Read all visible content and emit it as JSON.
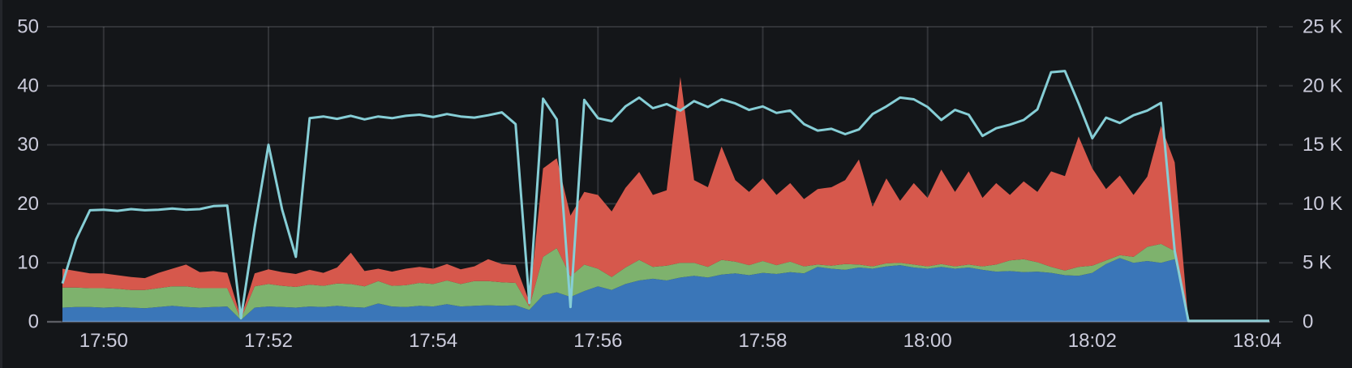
{
  "panel": {
    "colors": {
      "background": "#141619",
      "text": "#ccccdc",
      "grid": "rgba(204,204,220,0.16)",
      "axis_line": "rgba(204,204,220,0.28)"
    }
  },
  "chart_data": {
    "type": "area",
    "stacked": true,
    "title": "",
    "grid": true,
    "legend": "none",
    "x_axis": {
      "start_time": "17:49:30",
      "end_time": "18:04:00",
      "sample_step_seconds": 10,
      "tick_labels": [
        "17:50",
        "17:52",
        "17:54",
        "17:56",
        "17:58",
        "18:00",
        "18:02",
        "18:04"
      ],
      "tick_offsets_seconds": [
        30,
        150,
        270,
        390,
        510,
        630,
        750,
        870
      ]
    },
    "left_axis": {
      "min": 0,
      "max": 50,
      "tick_labels": [
        "0",
        "10",
        "20",
        "30",
        "40",
        "50"
      ],
      "tick_values": [
        0,
        10,
        20,
        30,
        40,
        50
      ]
    },
    "right_axis": {
      "min": 0,
      "max": 25000,
      "tick_labels": [
        "0",
        "5 K",
        "10 K",
        "15 K",
        "20 K",
        "25 K"
      ],
      "tick_values": [
        0,
        5000,
        10000,
        15000,
        20000,
        25000
      ]
    },
    "series": [
      {
        "name": "stack-blue",
        "type": "area",
        "axis": "left",
        "color": "#3a76b8",
        "values": [
          2.4,
          2.5,
          2.5,
          2.4,
          2.5,
          2.4,
          2.3,
          2.5,
          2.7,
          2.5,
          2.4,
          2.5,
          2.6,
          0.3,
          2.4,
          2.6,
          2.5,
          2.4,
          2.6,
          2.5,
          2.7,
          2.5,
          2.4,
          3.1,
          2.6,
          2.5,
          2.7,
          2.6,
          3.0,
          2.6,
          2.7,
          2.8,
          2.7,
          2.8,
          2.0,
          4.5,
          5.0,
          4.2,
          5.2,
          6.0,
          5.4,
          6.4,
          7.0,
          7.3,
          7.0,
          7.5,
          7.8,
          7.5,
          8.0,
          8.2,
          7.9,
          8.3,
          8.1,
          8.4,
          8.2,
          9.3,
          9.0,
          8.8,
          9.2,
          9.0,
          9.4,
          9.6,
          9.2,
          9.0,
          9.3,
          9.0,
          9.2,
          8.8,
          8.5,
          8.6,
          8.4,
          8.5,
          8.3,
          7.9,
          7.8,
          8.3,
          9.8,
          10.8,
          10.0,
          10.3,
          10.0,
          10.6,
          0,
          0,
          0,
          0,
          0,
          0
        ]
      },
      {
        "name": "stack-green",
        "type": "area",
        "axis": "left",
        "color": "#7eb26d",
        "values": [
          3.4,
          3.3,
          3.2,
          3.3,
          3.1,
          3.0,
          3.1,
          3.2,
          3.3,
          3.5,
          3.3,
          3.2,
          3.1,
          0.2,
          3.6,
          3.8,
          3.6,
          3.5,
          3.7,
          3.6,
          3.8,
          3.9,
          3.6,
          3.8,
          3.5,
          3.7,
          3.9,
          3.8,
          4.0,
          3.8,
          4.2,
          4.1,
          4.0,
          3.8,
          0.6,
          6.5,
          7.5,
          3.5,
          4.5,
          3.0,
          2.2,
          2.8,
          3.5,
          2.0,
          2.5,
          2.5,
          2.2,
          1.8,
          2.5,
          2.0,
          1.7,
          2.0,
          1.5,
          1.8,
          1.2,
          0.4,
          0.5,
          1.0,
          0.5,
          0.4,
          0.5,
          0.4,
          0.5,
          0.4,
          0.5,
          0.4,
          0.5,
          0.6,
          1.2,
          1.8,
          2.2,
          1.6,
          1.0,
          0.8,
          1.5,
          1.2,
          0.6,
          0.5,
          1.0,
          2.4,
          3.2,
          1.4,
          0,
          0,
          0,
          0,
          0,
          0
        ]
      },
      {
        "name": "stack-red",
        "type": "area",
        "axis": "left",
        "color": "#d6584c",
        "values": [
          3.2,
          2.8,
          2.5,
          2.5,
          2.3,
          2.2,
          2.0,
          2.6,
          3.0,
          3.7,
          2.7,
          2.9,
          2.6,
          0.2,
          2.2,
          2.5,
          2.3,
          2.2,
          2.5,
          2.2,
          2.7,
          5.3,
          2.6,
          2.1,
          2.4,
          2.8,
          2.7,
          2.6,
          2.8,
          2.5,
          2.5,
          3.7,
          3.1,
          3.0,
          0.8,
          15.0,
          15.2,
          10.3,
          12.3,
          12.5,
          11.1,
          13.5,
          14.9,
          12.2,
          12.8,
          31.5,
          14.0,
          13.5,
          19.2,
          13.8,
          12.4,
          14.0,
          11.9,
          13.3,
          11.4,
          12.8,
          13.3,
          14.2,
          17.8,
          10.1,
          14.4,
          10.5,
          13.8,
          11.6,
          16.0,
          12.6,
          15.8,
          11.6,
          13.8,
          11.1,
          13.2,
          11.9,
          16.2,
          16.0,
          22.1,
          16.5,
          12.1,
          13.5,
          10.5,
          11.9,
          20.0,
          15.0,
          0,
          0,
          0,
          0,
          0,
          0
        ]
      },
      {
        "name": "line-teal",
        "type": "line",
        "axis": "right",
        "color": "#86ced6",
        "values": [
          3250,
          7000,
          9450,
          9500,
          9400,
          9550,
          9450,
          9500,
          9600,
          9500,
          9550,
          9800,
          9850,
          300,
          8000,
          15000,
          9500,
          5500,
          17250,
          17400,
          17200,
          17450,
          17150,
          17400,
          17250,
          17450,
          17550,
          17350,
          17600,
          17400,
          17300,
          17500,
          17750,
          16750,
          1600,
          18900,
          17150,
          1250,
          18800,
          17250,
          17000,
          18250,
          19000,
          18100,
          18450,
          17900,
          18700,
          18200,
          18850,
          18500,
          17950,
          18250,
          17700,
          17900,
          16750,
          16200,
          16350,
          15900,
          16300,
          17600,
          18250,
          19000,
          18850,
          18200,
          17100,
          17950,
          17550,
          15750,
          16400,
          16700,
          17100,
          18000,
          21150,
          21250,
          18500,
          15550,
          17300,
          16850,
          17500,
          17900,
          18550,
          6000,
          75,
          75,
          75,
          75,
          75,
          75
        ]
      }
    ]
  }
}
